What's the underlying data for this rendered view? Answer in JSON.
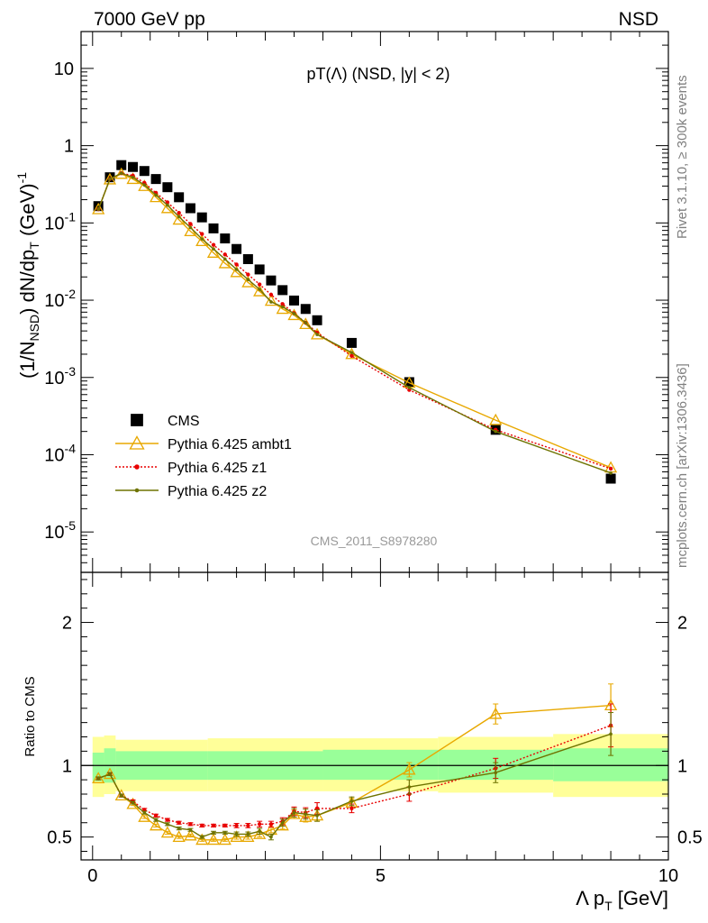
{
  "header": {
    "left": "7000 GeV pp",
    "right": "NSD"
  },
  "side_labels": {
    "rivet": "Rivet 3.1.10, ≥ 300k events",
    "mcplots": "mcplots.cern.ch [arXiv:1306.3436]"
  },
  "chart_data": [
    {
      "type": "scatter",
      "title": "pT(Λ) (NSD, |y| < 2)",
      "watermark": "CMS_2011_S8978280",
      "ylabel": "(1/N_NSD) dN/dp_T (GeV)^-1",
      "yscale": "log",
      "xlim": [
        -0.2,
        10
      ],
      "ylim": [
        3e-06,
        30
      ],
      "y_ticks": [
        {
          "value": 1e-05,
          "base": "10",
          "exp": "-5"
        },
        {
          "value": 0.0001,
          "base": "10",
          "exp": "-4"
        },
        {
          "value": 0.001,
          "base": "10",
          "exp": "-3"
        },
        {
          "value": 0.01,
          "base": "10",
          "exp": "-2"
        },
        {
          "value": 0.1,
          "base": "10",
          "exp": "-1"
        },
        {
          "value": 1,
          "base": "1",
          "exp": ""
        },
        {
          "value": 10,
          "base": "10",
          "exp": ""
        }
      ],
      "legend_position": "bottom-left",
      "series": [
        {
          "name": "CMS",
          "color": "#000000",
          "marker": "square",
          "x": [
            0.1,
            0.3,
            0.5,
            0.7,
            0.9,
            1.1,
            1.3,
            1.5,
            1.7,
            1.9,
            2.1,
            2.3,
            2.5,
            2.7,
            2.9,
            3.1,
            3.3,
            3.5,
            3.7,
            3.9,
            4.5,
            5.5,
            7.0,
            9.0
          ],
          "y": [
            0.165,
            0.39,
            0.56,
            0.53,
            0.47,
            0.37,
            0.29,
            0.215,
            0.155,
            0.118,
            0.085,
            0.063,
            0.046,
            0.034,
            0.025,
            0.018,
            0.0135,
            0.0099,
            0.0077,
            0.0055,
            0.0028,
            0.00087,
            0.00021,
            4.9e-05
          ]
        },
        {
          "name": "Pythia 6.425 ambt1",
          "color": "#e8a800",
          "marker": "triangle",
          "x": [
            0.1,
            0.3,
            0.5,
            0.7,
            0.9,
            1.1,
            1.3,
            1.5,
            1.7,
            1.9,
            2.1,
            2.3,
            2.5,
            2.7,
            2.9,
            3.1,
            3.3,
            3.5,
            3.7,
            3.9,
            4.5,
            5.5,
            7.0,
            9.0
          ],
          "y": [
            0.15,
            0.365,
            0.43,
            0.37,
            0.3,
            0.215,
            0.155,
            0.11,
            0.078,
            0.058,
            0.041,
            0.03,
            0.023,
            0.017,
            0.013,
            0.0098,
            0.0077,
            0.0064,
            0.0049,
            0.0036,
            0.002,
            0.00085,
            0.00028,
            6.8e-05
          ]
        },
        {
          "name": "Pythia 6.425 z1",
          "color": "#e80000",
          "marker": "dot",
          "dashed": true,
          "x": [
            0.1,
            0.3,
            0.5,
            0.7,
            0.9,
            1.1,
            1.3,
            1.5,
            1.7,
            1.9,
            2.1,
            2.3,
            2.5,
            2.7,
            2.9,
            3.1,
            3.3,
            3.5,
            3.7,
            3.9,
            4.5,
            5.5,
            7.0,
            9.0
          ],
          "y": [
            0.15,
            0.37,
            0.44,
            0.41,
            0.33,
            0.245,
            0.185,
            0.135,
            0.097,
            0.072,
            0.052,
            0.039,
            0.029,
            0.0215,
            0.016,
            0.0118,
            0.0089,
            0.0068,
            0.0051,
            0.0038,
            0.0019,
            0.00069,
            0.00021,
            6.6e-05
          ]
        },
        {
          "name": "Pythia 6.425 z2",
          "color": "#6e7300",
          "marker": "smalldot",
          "x": [
            0.1,
            0.3,
            0.5,
            0.7,
            0.9,
            1.1,
            1.3,
            1.5,
            1.7,
            1.9,
            2.1,
            2.3,
            2.5,
            2.7,
            2.9,
            3.1,
            3.3,
            3.5,
            3.7,
            3.9,
            4.5,
            5.5,
            7.0,
            9.0
          ],
          "y": [
            0.15,
            0.37,
            0.44,
            0.39,
            0.31,
            0.23,
            0.17,
            0.12,
            0.087,
            0.062,
            0.046,
            0.034,
            0.025,
            0.0185,
            0.0138,
            0.0095,
            0.0082,
            0.0067,
            0.0051,
            0.0036,
            0.0021,
            0.00074,
            0.0002,
            5.8e-05
          ]
        }
      ]
    },
    {
      "type": "line",
      "ylabel": "Ratio to CMS",
      "xlabel": "Λ p_T [GeV]",
      "xlim": [
        -0.2,
        10
      ],
      "ylim": [
        0.34,
        2.35
      ],
      "x_ticks": [
        0,
        5,
        10
      ],
      "y_ticks": [
        0.5,
        1,
        2
      ],
      "reference_line": 1,
      "band_colors": {
        "inner": "#99ff99",
        "outer": "#ffff99"
      },
      "bands": [
        {
          "x": [
            0,
            0.2
          ],
          "inner": [
            0.89,
            1.09
          ],
          "outer": [
            0.78,
            1.2
          ]
        },
        {
          "x": [
            0.2,
            0.4
          ],
          "inner": [
            0.88,
            1.12
          ],
          "outer": [
            0.8,
            1.21
          ]
        },
        {
          "x": [
            0.4,
            2.0
          ],
          "inner": [
            0.9,
            1.1
          ],
          "outer": [
            0.82,
            1.18
          ]
        },
        {
          "x": [
            2.0,
            4.0
          ],
          "inner": [
            0.9,
            1.1
          ],
          "outer": [
            0.82,
            1.19
          ]
        },
        {
          "x": [
            4.0,
            6.0
          ],
          "inner": [
            0.9,
            1.11
          ],
          "outer": [
            0.82,
            1.19
          ]
        },
        {
          "x": [
            6.0,
            8.0
          ],
          "inner": [
            0.9,
            1.11
          ],
          "outer": [
            0.81,
            1.2
          ]
        },
        {
          "x": [
            8.0,
            10.0
          ],
          "inner": [
            0.89,
            1.12
          ],
          "outer": [
            0.78,
            1.22
          ]
        }
      ],
      "series": [
        {
          "name": "Pythia 6.425 ambt1",
          "color": "#e8a800",
          "marker": "triangle",
          "x": [
            0.1,
            0.3,
            0.5,
            0.7,
            0.9,
            1.1,
            1.3,
            1.5,
            1.7,
            1.9,
            2.1,
            2.3,
            2.5,
            2.7,
            2.9,
            3.1,
            3.3,
            3.5,
            3.7,
            3.9,
            4.5,
            5.5,
            7.0,
            9.0
          ],
          "y": [
            0.91,
            0.94,
            0.79,
            0.73,
            0.64,
            0.58,
            0.53,
            0.5,
            0.51,
            0.48,
            0.48,
            0.48,
            0.5,
            0.5,
            0.52,
            0.55,
            0.58,
            0.66,
            0.64,
            0.65,
            0.74,
            0.97,
            1.36,
            1.42
          ],
          "err": [
            0.01,
            0.01,
            0.01,
            0.01,
            0.01,
            0.01,
            0.01,
            0.01,
            0.01,
            0.01,
            0.01,
            0.01,
            0.015,
            0.015,
            0.02,
            0.02,
            0.025,
            0.03,
            0.035,
            0.04,
            0.03,
            0.05,
            0.07,
            0.15
          ]
        },
        {
          "name": "Pythia 6.425 z1",
          "color": "#e80000",
          "marker": "dot",
          "dashed": true,
          "x": [
            0.1,
            0.3,
            0.5,
            0.7,
            0.9,
            1.1,
            1.3,
            1.5,
            1.7,
            1.9,
            2.1,
            2.3,
            2.5,
            2.7,
            2.9,
            3.1,
            3.3,
            3.5,
            3.7,
            3.9,
            4.5,
            5.5,
            7.0,
            9.0
          ],
          "y": [
            0.91,
            0.94,
            0.79,
            0.75,
            0.69,
            0.65,
            0.62,
            0.6,
            0.59,
            0.58,
            0.58,
            0.58,
            0.58,
            0.58,
            0.59,
            0.59,
            0.61,
            0.68,
            0.67,
            0.7,
            0.7,
            0.8,
            0.98,
            1.28
          ],
          "err": [
            0.01,
            0.01,
            0.01,
            0.01,
            0.01,
            0.01,
            0.01,
            0.01,
            0.01,
            0.01,
            0.01,
            0.01,
            0.015,
            0.015,
            0.02,
            0.02,
            0.025,
            0.03,
            0.035,
            0.04,
            0.03,
            0.05,
            0.07,
            0.15
          ]
        },
        {
          "name": "Pythia 6.425 z2",
          "color": "#6e7300",
          "marker": "smalldot",
          "x": [
            0.1,
            0.3,
            0.5,
            0.7,
            0.9,
            1.1,
            1.3,
            1.5,
            1.7,
            1.9,
            2.1,
            2.3,
            2.5,
            2.7,
            2.9,
            3.1,
            3.3,
            3.5,
            3.7,
            3.9,
            4.5,
            5.5,
            7.0,
            9.0
          ],
          "y": [
            0.91,
            0.94,
            0.79,
            0.74,
            0.67,
            0.62,
            0.59,
            0.56,
            0.55,
            0.5,
            0.53,
            0.53,
            0.52,
            0.52,
            0.54,
            0.5,
            0.6,
            0.67,
            0.66,
            0.65,
            0.75,
            0.85,
            0.95,
            1.22
          ],
          "err": [
            0.01,
            0.01,
            0.01,
            0.01,
            0.01,
            0.01,
            0.01,
            0.01,
            0.01,
            0.01,
            0.01,
            0.01,
            0.015,
            0.015,
            0.02,
            0.02,
            0.025,
            0.03,
            0.035,
            0.04,
            0.03,
            0.05,
            0.07,
            0.15
          ]
        }
      ]
    }
  ]
}
